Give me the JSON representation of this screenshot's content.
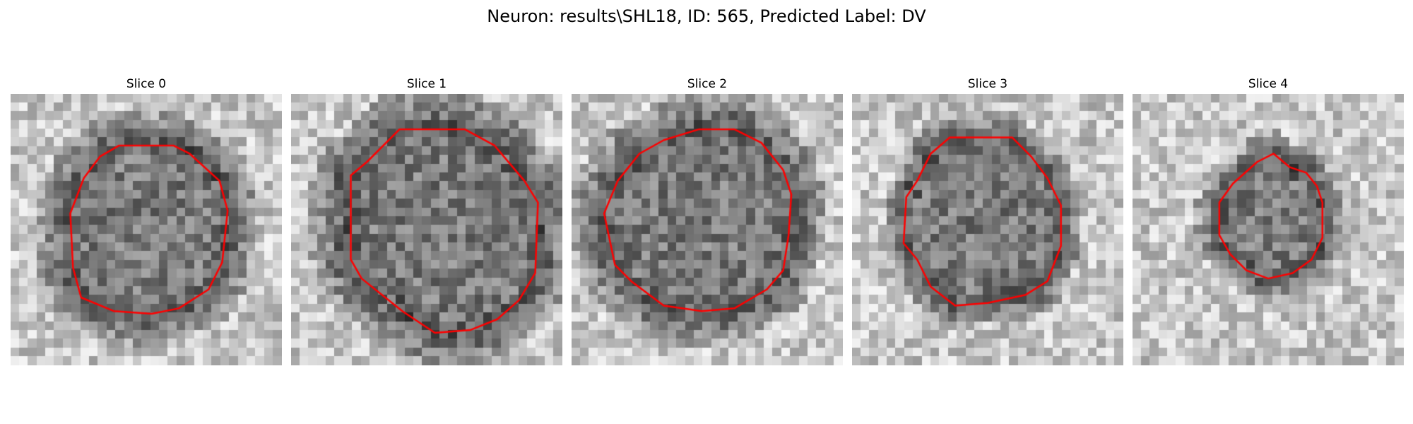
{
  "figure": {
    "title": "Neuron: results\\SHL18, ID: 565, Predicted Label: DV"
  },
  "panels": [
    {
      "title": "Slice 0",
      "seed": 11,
      "contour": [
        [
          0.4,
          0.19
        ],
        [
          0.6,
          0.19
        ],
        [
          0.66,
          0.22
        ],
        [
          0.77,
          0.32
        ],
        [
          0.8,
          0.43
        ],
        [
          0.78,
          0.62
        ],
        [
          0.73,
          0.72
        ],
        [
          0.62,
          0.79
        ],
        [
          0.52,
          0.81
        ],
        [
          0.38,
          0.8
        ],
        [
          0.26,
          0.75
        ],
        [
          0.23,
          0.64
        ],
        [
          0.22,
          0.44
        ],
        [
          0.27,
          0.31
        ],
        [
          0.33,
          0.23
        ]
      ],
      "dark_ring": 0.12
    },
    {
      "title": "Slice 1",
      "seed": 23,
      "contour": [
        [
          0.4,
          0.13
        ],
        [
          0.64,
          0.13
        ],
        [
          0.75,
          0.19
        ],
        [
          0.86,
          0.32
        ],
        [
          0.91,
          0.4
        ],
        [
          0.9,
          0.66
        ],
        [
          0.84,
          0.76
        ],
        [
          0.76,
          0.83
        ],
        [
          0.66,
          0.87
        ],
        [
          0.53,
          0.88
        ],
        [
          0.41,
          0.8
        ],
        [
          0.26,
          0.68
        ],
        [
          0.22,
          0.61
        ],
        [
          0.22,
          0.3
        ],
        [
          0.28,
          0.25
        ]
      ],
      "dark_ring": 0.14
    },
    {
      "title": "Slice 2",
      "seed": 37,
      "contour": [
        [
          0.47,
          0.13
        ],
        [
          0.6,
          0.13
        ],
        [
          0.7,
          0.18
        ],
        [
          0.78,
          0.28
        ],
        [
          0.81,
          0.37
        ],
        [
          0.8,
          0.52
        ],
        [
          0.78,
          0.65
        ],
        [
          0.72,
          0.72
        ],
        [
          0.6,
          0.79
        ],
        [
          0.48,
          0.8
        ],
        [
          0.34,
          0.78
        ],
        [
          0.22,
          0.69
        ],
        [
          0.16,
          0.63
        ],
        [
          0.12,
          0.44
        ],
        [
          0.17,
          0.32
        ],
        [
          0.25,
          0.22
        ],
        [
          0.34,
          0.17
        ]
      ],
      "dark_ring": 0.13
    },
    {
      "title": "Slice 3",
      "seed": 49,
      "contour": [
        [
          0.36,
          0.16
        ],
        [
          0.59,
          0.16
        ],
        [
          0.66,
          0.23
        ],
        [
          0.72,
          0.31
        ],
        [
          0.77,
          0.41
        ],
        [
          0.77,
          0.56
        ],
        [
          0.72,
          0.69
        ],
        [
          0.64,
          0.74
        ],
        [
          0.5,
          0.77
        ],
        [
          0.38,
          0.78
        ],
        [
          0.29,
          0.71
        ],
        [
          0.24,
          0.61
        ],
        [
          0.19,
          0.55
        ],
        [
          0.2,
          0.38
        ],
        [
          0.24,
          0.32
        ],
        [
          0.29,
          0.22
        ]
      ],
      "dark_ring": 0.08
    },
    {
      "title": "Slice 4",
      "seed": 61,
      "contour": [
        [
          0.46,
          0.25
        ],
        [
          0.52,
          0.22
        ],
        [
          0.58,
          0.27
        ],
        [
          0.64,
          0.29
        ],
        [
          0.68,
          0.34
        ],
        [
          0.7,
          0.4
        ],
        [
          0.7,
          0.53
        ],
        [
          0.66,
          0.61
        ],
        [
          0.59,
          0.66
        ],
        [
          0.5,
          0.68
        ],
        [
          0.42,
          0.65
        ],
        [
          0.36,
          0.59
        ],
        [
          0.32,
          0.52
        ],
        [
          0.32,
          0.4
        ],
        [
          0.37,
          0.33
        ]
      ],
      "dark_ring": 0.08
    }
  ],
  "colors": {
    "contour": "#ff0000",
    "background": "#ffffff"
  }
}
